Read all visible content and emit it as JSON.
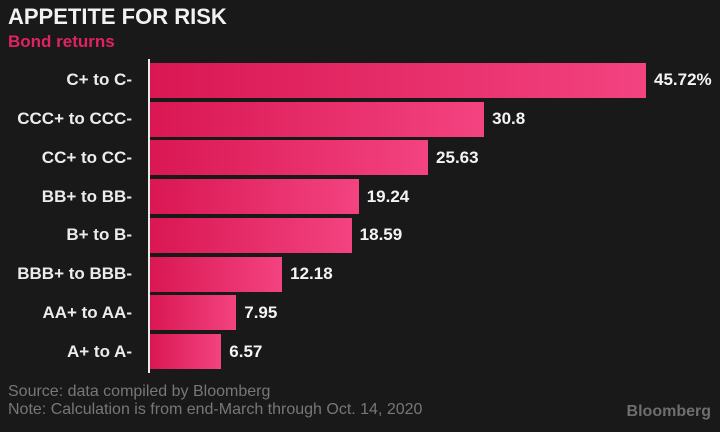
{
  "header": {
    "title": "APPETITE FOR RISK",
    "subtitle": "Bond returns"
  },
  "chart_data": {
    "type": "bar",
    "orientation": "horizontal",
    "title": "APPETITE FOR RISK",
    "subtitle": "Bond returns",
    "categories": [
      "C+ to C-",
      "CCC+ to CCC-",
      "CC+ to CC-",
      "BB+ to BB-",
      "B+ to B-",
      "BBB+ to BBB-",
      "AA+ to AA-",
      "A+ to A-"
    ],
    "values": [
      45.72,
      30.8,
      25.63,
      19.24,
      18.59,
      12.18,
      7.95,
      6.57
    ],
    "value_labels": [
      "45.72%",
      "30.8",
      "25.63",
      "19.24",
      "18.59",
      "12.18",
      "7.95",
      "6.57"
    ],
    "xlabel": "",
    "ylabel": "",
    "xlim": [
      0,
      51.9
    ],
    "grid": false,
    "legend": false,
    "bar_gradient_start": "#d91753",
    "bar_gradient_end": "#f34380"
  },
  "footer": {
    "source": "Source: data compiled by Bloomberg",
    "note": "Note: Calculation is from end-March through Oct. 14, 2020",
    "logo": "Bloomberg"
  },
  "colors": {
    "background": "#191919",
    "title_text": "#f1f1f1",
    "subtitle_text": "#e02360",
    "category_label": "#ececec",
    "value_label": "#f4f4f4",
    "axis_line": "#eaeaea",
    "footer_text": "#777777",
    "logo_text": "#6e6e6e"
  }
}
